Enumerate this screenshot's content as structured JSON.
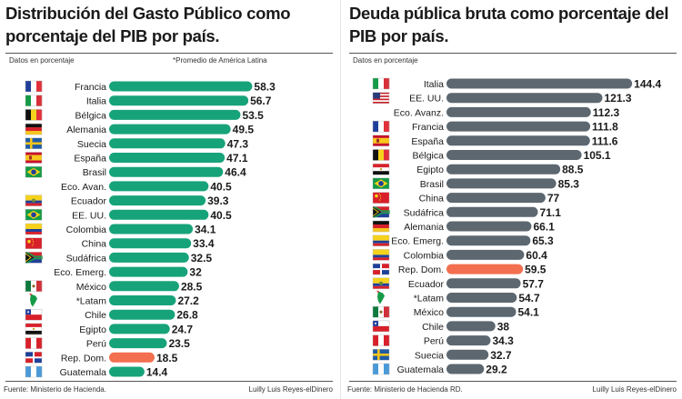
{
  "left": {
    "title": "Distribución del Gasto Público como porcentaje del PIB por país.",
    "caption_left": "Datos en porcentaje",
    "caption_right": "*Promedio de América Latina",
    "source": "Fuente: Ministerio de Hacienda.",
    "credit": "Luilly Luis Reyes-elDinero"
  },
  "right": {
    "title": "Deuda pública bruta como porcentaje del PIB por país.",
    "caption_left": "Datos en porcentaje",
    "source": "Fuente: Ministerio de Hacienda RD.",
    "credit": "Luilly Luis Reyes-elDinero"
  },
  "colors": {
    "bar": "#17a37a",
    "debt_bar": "#5c6770",
    "highlight": "#f36f4f",
    "label": "#1a1a1a"
  },
  "chart_data": [
    {
      "type": "bar",
      "orientation": "horizontal",
      "title": "Distribución del Gasto Público como porcentaje del PIB por país.",
      "categories": [
        "Francia",
        "Italia",
        "Bélgica",
        "Alemania",
        "Suecia",
        "España",
        "Brasil",
        "Eco. Avan.",
        "Ecuador",
        "EE. UU.",
        "Colombia",
        "China",
        "Sudáfrica",
        "Eco. Emerg.",
        "México",
        "*Latam",
        "Chile",
        "Egipto",
        "Perú",
        "Rep. Dom.",
        "Guatemala"
      ],
      "values": [
        58.3,
        56.7,
        53.5,
        49.5,
        47.3,
        47.1,
        46.4,
        40.5,
        39.3,
        40.5,
        34.1,
        33.4,
        32.5,
        32,
        28.5,
        27.2,
        26.8,
        24.7,
        23.5,
        18.5,
        14.4
      ],
      "flags": [
        "france",
        "italy",
        "belgium",
        "germany",
        "sweden",
        "spain",
        "brazil",
        "none",
        "ecuador",
        "brazil",
        "colombia",
        "china",
        "south-africa",
        "none",
        "mexico",
        "latam-map",
        "chile",
        "egypt",
        "peru",
        "dominican-republic",
        "guatemala"
      ],
      "highlight": "Rep. Dom.",
      "xlim": [
        0,
        60
      ]
    },
    {
      "type": "bar",
      "orientation": "horizontal",
      "title": "Deuda pública bruta como porcentaje del PIB por país.",
      "categories": [
        "Italia",
        "EE. UU.",
        "Eco. Avanz.",
        "Francia",
        "España",
        "Bélgica",
        "Egipto",
        "Brasil",
        "China",
        "Sudáfrica",
        "Alemania",
        "Eco. Emerg.",
        "Colombia",
        "Rep. Dom.",
        "Ecuador",
        "*Latam",
        "México",
        "Chile",
        "Perú",
        "Suecia",
        "Guatemala"
      ],
      "values": [
        144.4,
        121.3,
        112.3,
        111.8,
        111.6,
        105.1,
        88.5,
        85.3,
        77,
        71.1,
        66.1,
        65.3,
        60.4,
        59.5,
        57.7,
        54.7,
        54.1,
        38,
        34.3,
        32.7,
        29.2
      ],
      "flags": [
        "italy",
        "usa",
        "none",
        "france",
        "spain",
        "belgium",
        "egypt",
        "brazil",
        "china",
        "south-africa",
        "germany",
        "colombia",
        "colombia",
        "dominican-republic",
        "ecuador",
        "latam-map",
        "mexico",
        "chile",
        "peru",
        "sweden",
        "guatemala"
      ],
      "highlight": "Rep. Dom.",
      "xlim": [
        0,
        145
      ]
    }
  ]
}
